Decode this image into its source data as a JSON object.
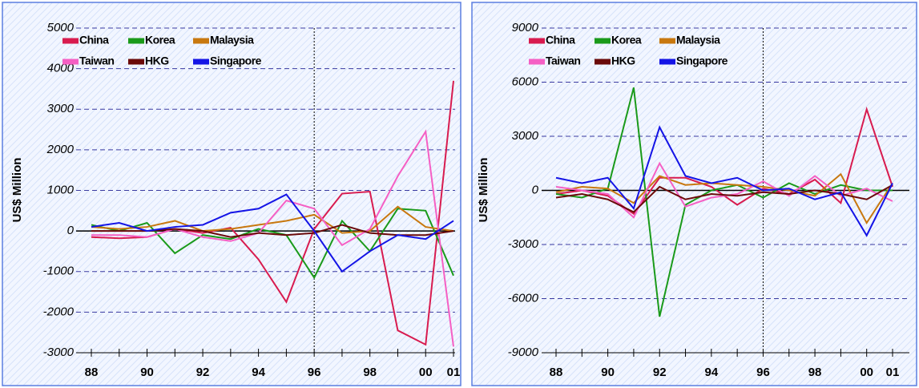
{
  "chart_data": [
    {
      "type": "line",
      "y_label": "US$ Million",
      "categories": [
        "88",
        null,
        "90",
        null,
        "92",
        null,
        "94",
        null,
        "96",
        null,
        "98",
        null,
        "00",
        "01"
      ],
      "ylim": [
        -3000,
        5000
      ],
      "yticks": [
        -3000,
        -2000,
        -1000,
        0,
        1000,
        2000,
        3000,
        4000,
        5000
      ],
      "grid": true,
      "series": [
        {
          "name": "China",
          "color": "#d81b4f",
          "values": [
            -150,
            -180,
            -150,
            50,
            -50,
            80,
            -700,
            -1750,
            50,
            920,
            970,
            -2450,
            -2800,
            3700
          ]
        },
        {
          "name": "Korea",
          "color": "#1a9a1a",
          "values": [
            150,
            0,
            200,
            -550,
            -100,
            -200,
            50,
            -100,
            -1150,
            250,
            -500,
            550,
            500,
            -1100
          ]
        },
        {
          "name": "Malaysia",
          "color": "#c8780f",
          "values": [
            100,
            50,
            100,
            250,
            0,
            50,
            150,
            250,
            400,
            -50,
            0,
            600,
            100,
            0
          ]
        },
        {
          "name": "Taiwan",
          "color": "#f55fc4",
          "values": [
            -100,
            -100,
            -150,
            50,
            -150,
            -250,
            -50,
            750,
            550,
            -350,
            50,
            1350,
            2450,
            -2850
          ]
        },
        {
          "name": "HKG",
          "color": "#6b0a0a",
          "values": [
            0,
            0,
            0,
            50,
            0,
            -150,
            -50,
            -100,
            -50,
            150,
            -50,
            -100,
            -100,
            0
          ]
        },
        {
          "name": "Singapore",
          "color": "#1414e6",
          "values": [
            100,
            200,
            0,
            100,
            150,
            450,
            550,
            900,
            0,
            -1000,
            -500,
            -100,
            -200,
            250
          ]
        }
      ]
    },
    {
      "type": "line",
      "y_label": "US$ Million",
      "categories": [
        "88",
        null,
        "90",
        null,
        "92",
        null,
        "94",
        null,
        "96",
        null,
        "98",
        null,
        "00",
        "01"
      ],
      "ylim": [
        -9000,
        9000
      ],
      "yticks": [
        -9000,
        -6000,
        -3000,
        0,
        3000,
        6000,
        9000
      ],
      "grid": true,
      "series": [
        {
          "name": "China",
          "color": "#d81b4f",
          "values": [
            -200,
            0,
            -300,
            -1300,
            700,
            700,
            200,
            -800,
            100,
            -200,
            600,
            -700,
            4500,
            200
          ]
        },
        {
          "name": "Korea",
          "color": "#1a9a1a",
          "values": [
            -200,
            -400,
            100,
            5700,
            -7000,
            -800,
            0,
            300,
            -400,
            400,
            -200,
            300,
            0,
            0
          ]
        },
        {
          "name": "Malaysia",
          "color": "#c8780f",
          "values": [
            -100,
            200,
            100,
            -700,
            800,
            300,
            400,
            300,
            200,
            0,
            -300,
            900,
            -1800,
            400
          ]
        },
        {
          "name": "Taiwan",
          "color": "#f55fc4",
          "values": [
            200,
            0,
            -200,
            -1500,
            1500,
            -900,
            -400,
            -200,
            500,
            -300,
            800,
            -300,
            100,
            -600
          ]
        },
        {
          "name": "HKG",
          "color": "#6b0a0a",
          "values": [
            -400,
            -200,
            -500,
            -1200,
            200,
            -500,
            -200,
            -300,
            -100,
            -200,
            0,
            -200,
            -500,
            300
          ]
        },
        {
          "name": "Singapore",
          "color": "#1414e6",
          "values": [
            700,
            400,
            700,
            -1000,
            3500,
            800,
            400,
            700,
            0,
            100,
            -500,
            -100,
            -2500,
            400
          ]
        }
      ]
    }
  ]
}
